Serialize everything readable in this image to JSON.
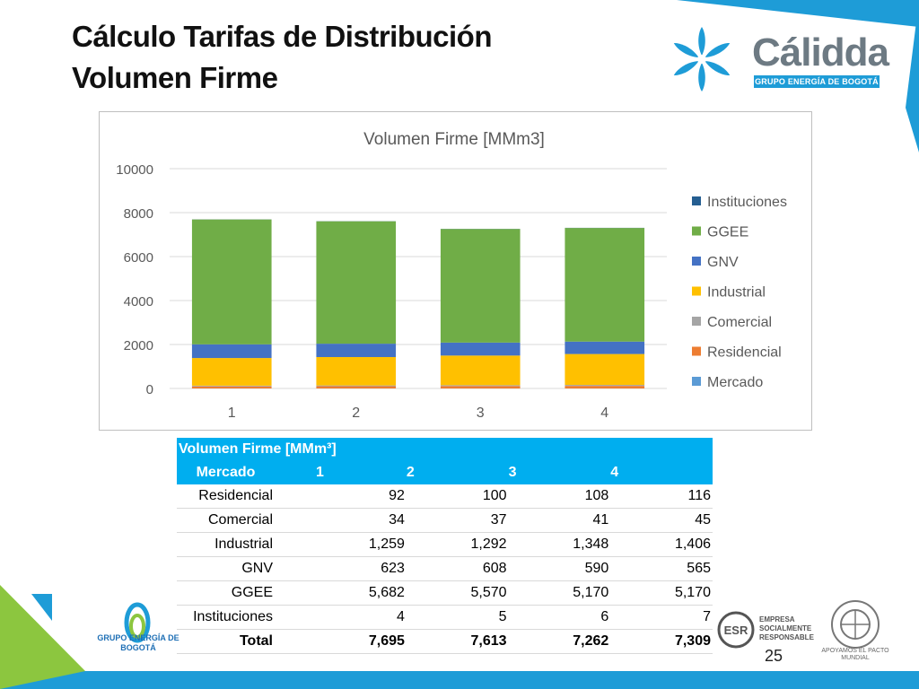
{
  "slide": {
    "title_line1": "Cálculo Tarifas de Distribución",
    "title_line2": "Volumen Firme",
    "page_number": "25"
  },
  "brand": {
    "logo_name": "Cálidda",
    "logo_subtitle": "GRUPO ENERGÍA DE BOGOTÁ",
    "footer_logo_text": "GRUPO ENERGÍA DE BOGOTÁ",
    "esr_text": [
      "EMPRESA",
      "SOCIALMENTE",
      "RESPONSABLE"
    ],
    "esr_badge": "ESR",
    "global_compact_text": "APOYAMOS EL PACTO MUNDIAL",
    "accent_color": "#1e9cd7",
    "green_color": "#8cc63f"
  },
  "chart_data": {
    "type": "bar",
    "stacked": true,
    "title": "Volumen Firme [MMm3]",
    "categories": [
      "1",
      "2",
      "3",
      "4"
    ],
    "ylim": [
      0,
      10000
    ],
    "yticks": [
      "0",
      "2000",
      "4000",
      "6000",
      "8000",
      "10000"
    ],
    "legend_position": "right",
    "grid": true,
    "series": [
      {
        "name": "Mercado",
        "color": "#5b9bd5",
        "values": [
          0,
          0,
          0,
          0
        ]
      },
      {
        "name": "Residencial",
        "color": "#ed7d31",
        "values": [
          92,
          100,
          108,
          116
        ]
      },
      {
        "name": "Comercial",
        "color": "#a5a5a5",
        "values": [
          34,
          37,
          41,
          45
        ]
      },
      {
        "name": "Industrial",
        "color": "#ffc000",
        "values": [
          1259,
          1292,
          1348,
          1406
        ]
      },
      {
        "name": "GNV",
        "color": "#4472c4",
        "values": [
          623,
          608,
          590,
          565
        ]
      },
      {
        "name": "GGEE",
        "color": "#70ad47",
        "values": [
          5682,
          5570,
          5170,
          5170
        ]
      },
      {
        "name": "Instituciones",
        "color": "#255e91",
        "values": [
          4,
          5,
          6,
          7
        ]
      }
    ]
  },
  "table": {
    "caption": "Volumen Firme [MMm³]",
    "header": [
      "Mercado",
      "1",
      "2",
      "3",
      "4"
    ],
    "rows": [
      [
        "Residencial",
        "92",
        "100",
        "108",
        "116"
      ],
      [
        "Comercial",
        "34",
        "37",
        "41",
        "45"
      ],
      [
        "Industrial",
        "1,259",
        "1,292",
        "1,348",
        "1,406"
      ],
      [
        "GNV",
        "623",
        "608",
        "590",
        "565"
      ],
      [
        "GGEE",
        "5,682",
        "5,570",
        "5,170",
        "5,170"
      ],
      [
        "Instituciones",
        "4",
        "5",
        "6",
        "7"
      ]
    ],
    "total": [
      "Total",
      "7,695",
      "7,613",
      "7,262",
      "7,309"
    ]
  }
}
